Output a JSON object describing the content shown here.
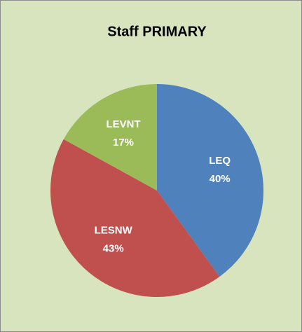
{
  "chart_data": {
    "type": "pie",
    "title": "Staff PRIMARY",
    "categories": [
      "LEQ",
      "LESNW",
      "LEVNT"
    ],
    "values": [
      40,
      43,
      17
    ],
    "value_labels": [
      "40%",
      "43%",
      "17%"
    ],
    "colors": [
      "#4f81bd",
      "#c0504d",
      "#9bbb59"
    ]
  }
}
